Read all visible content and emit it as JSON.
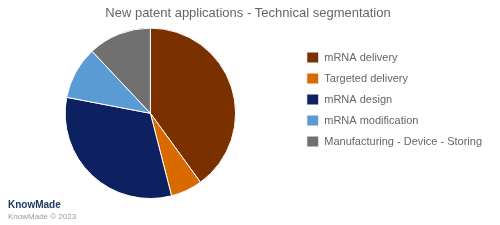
{
  "chart_data": {
    "type": "pie",
    "title": "New patent applications - Technical segmentation",
    "categories": [
      "mRNA delivery",
      "Targeted delivery",
      "mRNA design",
      "mRNA modification",
      "Manufacturing - Device - Storing"
    ],
    "values": [
      40,
      6,
      32,
      10,
      12
    ],
    "colors": [
      "#7B3000",
      "#D96A00",
      "#0D2060",
      "#5B9BD5",
      "#707070"
    ],
    "legend": "right",
    "annotations": [
      "KnowMade",
      "KnowMade © 2023"
    ]
  }
}
